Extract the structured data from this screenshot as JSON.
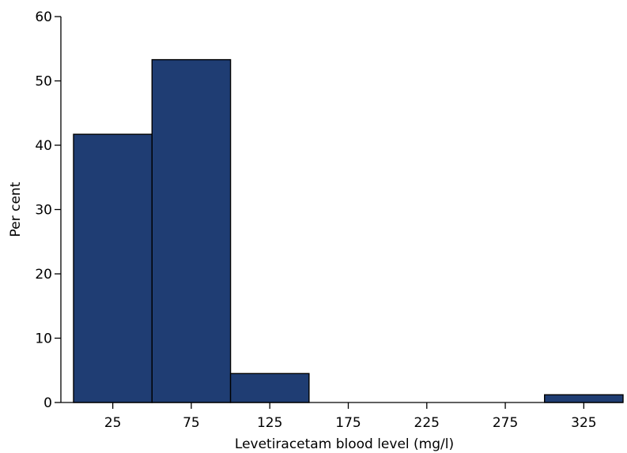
{
  "chart_data": {
    "type": "bar",
    "title": "",
    "xlabel": "Levetiracetam blood level (mg/l)",
    "ylabel": "Per cent",
    "x_ticks": [
      25,
      75,
      125,
      175,
      225,
      275,
      325
    ],
    "y_ticks": [
      0,
      10,
      20,
      30,
      40,
      50,
      60
    ],
    "xlim": [
      0,
      350
    ],
    "ylim": [
      0,
      60
    ],
    "bin_width": 50,
    "bins": [
      {
        "start": 0,
        "end": 50,
        "value": 41.7
      },
      {
        "start": 50,
        "end": 100,
        "value": 53.3
      },
      {
        "start": 100,
        "end": 150,
        "value": 4.5
      },
      {
        "start": 150,
        "end": 200,
        "value": 0
      },
      {
        "start": 200,
        "end": 250,
        "value": 0
      },
      {
        "start": 250,
        "end": 300,
        "value": 0
      },
      {
        "start": 300,
        "end": 350,
        "value": 1.2
      }
    ],
    "bar_color": "#1f3d73",
    "grid": false,
    "legend": "none"
  }
}
